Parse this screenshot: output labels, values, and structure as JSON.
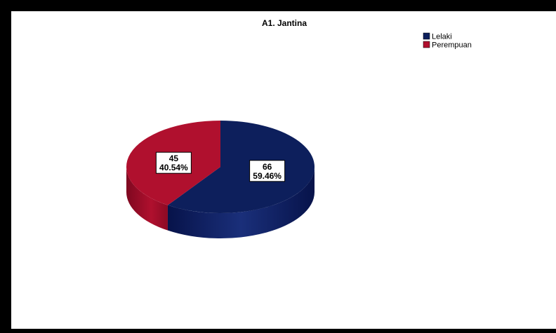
{
  "chart_data": {
    "type": "pie",
    "title": "A1. Jantina",
    "categories": [
      "Lelaki",
      "Perempuan"
    ],
    "values": [
      66,
      45
    ],
    "percent_labels": [
      "59.46%",
      "40.54%"
    ],
    "colors": [
      "#0d1f5c",
      "#b0102e"
    ],
    "legend_position": "top-right",
    "style": "3d"
  }
}
